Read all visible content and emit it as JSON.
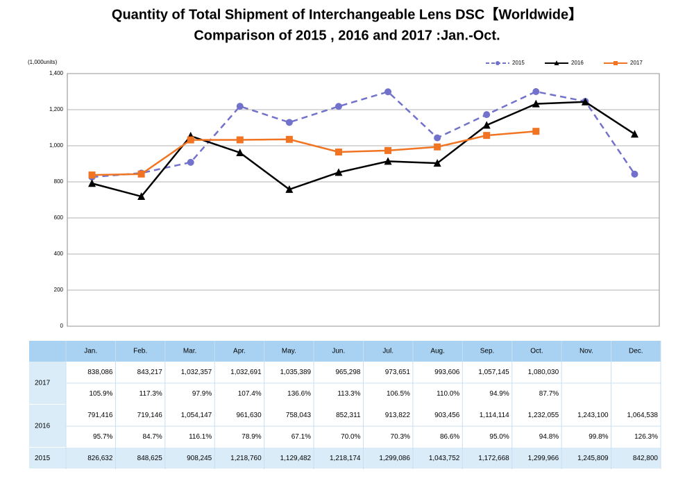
{
  "chart_data": {
    "type": "line",
    "title": "Quantity of Total Shipment of Interchangeable Lens DSC【Worldwide】",
    "subtitle": "Comparison of 2015 , 2016 and 2017 :Jan.-Oct.",
    "y_label": "(1,000units)",
    "categories": [
      "Jan.",
      "Feb.",
      "Mar.",
      "Apr.",
      "May.",
      "Jun.",
      "Jul.",
      "Aug.",
      "Sep.",
      "Oct.",
      "Nov.",
      "Dec."
    ],
    "ylim": [
      0,
      1400
    ],
    "yticks": [
      0,
      200,
      400,
      600,
      800,
      {
        "value": 1000,
        "label": "1,000"
      },
      {
        "value": 1200,
        "label": "1,200"
      },
      {
        "value": 1400,
        "label": "1,400"
      }
    ],
    "grid": true,
    "legend": "top-right",
    "series": [
      {
        "name": "2015",
        "color": "#7272cc",
        "dash": true,
        "marker": "circle",
        "values": [
          826.632,
          848.625,
          908.245,
          1218.76,
          1129.482,
          1218.174,
          1299.086,
          1043.752,
          1172.668,
          1299.966,
          1245.809,
          842.8
        ],
        "value_labels": [
          "826,632",
          "848,625",
          "908,245",
          "1,218,760",
          "1,129,482",
          "1,218,174",
          "1,299,086",
          "1,043,752",
          "1,172,668",
          "1,299,966",
          "1,245,809",
          "842,800"
        ]
      },
      {
        "name": "2016",
        "color": "#000000",
        "dash": false,
        "marker": "triangle",
        "values": [
          791.416,
          719.146,
          1054.147,
          961.63,
          758.043,
          852.311,
          913.822,
          903.456,
          1114.114,
          1232.055,
          1243.1,
          1064.538
        ],
        "value_labels": [
          "791,416",
          "719,146",
          "1,054,147",
          "961,630",
          "758,043",
          "852,311",
          "913,822",
          "903,456",
          "1,114,114",
          "1,232,055",
          "1,243,100",
          "1,064,538"
        ],
        "yoy": [
          "95.7%",
          "84.7%",
          "116.1%",
          "78.9%",
          "67.1%",
          "70.0%",
          "70.3%",
          "86.6%",
          "95.0%",
          "94.8%",
          "99.8%",
          "126.3%"
        ]
      },
      {
        "name": "2017",
        "color": "#f07422",
        "dash": false,
        "marker": "square",
        "values": [
          838.086,
          843.217,
          1032.357,
          1032.691,
          1035.389,
          965.298,
          973.651,
          993.606,
          1057.145,
          1080.03,
          null,
          null
        ],
        "value_labels": [
          "838,086",
          "843,217",
          "1,032,357",
          "1,032,691",
          "1,035,389",
          "965,298",
          "973,651",
          "993,606",
          "1,057,145",
          "1,080,030",
          null,
          null
        ],
        "yoy": [
          "105.9%",
          "117.3%",
          "97.9%",
          "107.4%",
          "136.6%",
          "113.3%",
          "106.5%",
          "110.0%",
          "94.9%",
          "87.7%",
          null,
          null
        ]
      }
    ]
  }
}
